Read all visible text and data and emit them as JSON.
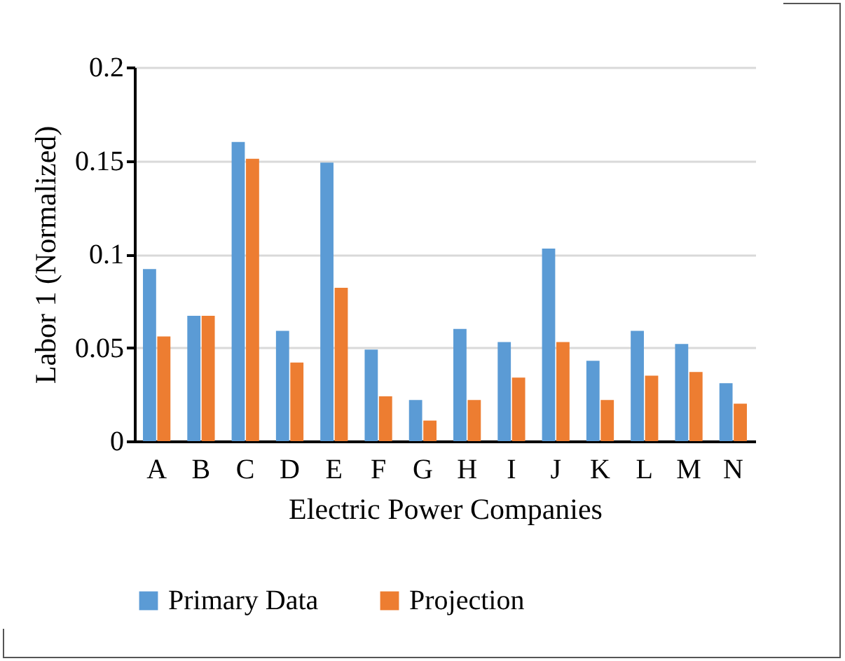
{
  "chart_data": {
    "type": "bar",
    "categories": [
      "A",
      "B",
      "C",
      "D",
      "E",
      "F",
      "G",
      "H",
      "I",
      "J",
      "K",
      "L",
      "M",
      "N"
    ],
    "xlabel": "Electric Power Companies",
    "ylabel": "Labor 1 (Normalized)",
    "series": [
      {
        "name": "Primary Data",
        "color": "#5b9bd5",
        "values": [
          0.092,
          0.067,
          0.16,
          0.059,
          0.149,
          0.049,
          0.022,
          0.06,
          0.053,
          0.103,
          0.043,
          0.059,
          0.052,
          0.031
        ]
      },
      {
        "name": "Projection",
        "color": "#ed7d31",
        "values": [
          0.056,
          0.067,
          0.151,
          0.042,
          0.082,
          0.024,
          0.011,
          0.022,
          0.034,
          0.053,
          0.022,
          0.035,
          0.037,
          0.02
        ]
      }
    ],
    "ylim": [
      0,
      0.2
    ],
    "yticks": [
      0,
      0.05,
      0.1,
      0.15,
      0.2
    ],
    "grid": "y",
    "legend": "bottom"
  }
}
